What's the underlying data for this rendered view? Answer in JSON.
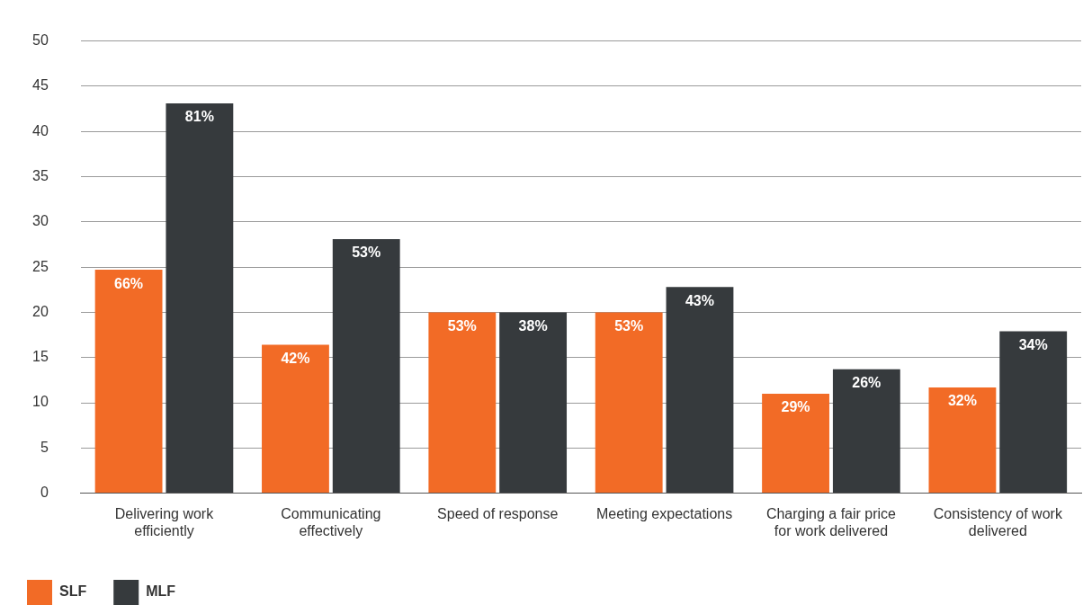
{
  "chart_data": {
    "type": "bar",
    "categories": [
      "Delivering work efficiently",
      "Communicating effectively",
      "Speed of response",
      "Meeting expectations",
      "Charging a fair price for work delivered",
      "Consistency of work delivered"
    ],
    "series": [
      {
        "name": "SLF",
        "color": "#f26b26",
        "values": [
          24.7,
          16.4,
          20,
          20,
          11,
          11.7
        ]
      },
      {
        "name": "MLF",
        "color": "#363a3d",
        "values": [
          43.1,
          28.1,
          20,
          22.8,
          13.7,
          17.9
        ]
      }
    ],
    "annotations": [
      {
        "text": "66%",
        "x": "Delivering work efficiently",
        "y": 24.7
      },
      {
        "text": "81%",
        "x": "Delivering work efficiently",
        "y": 43.1
      },
      {
        "text": "42%",
        "x": "Communicating effectively",
        "y": 16.4
      },
      {
        "text": "53%",
        "x": "Communicating effectively",
        "y": 28.1
      },
      {
        "text": "53%",
        "x": "Speed of response",
        "y": 20
      },
      {
        "text": "38%",
        "x": "Speed of response",
        "y": 20
      },
      {
        "text": "53%",
        "x": "Meeting expectations",
        "y": 20
      },
      {
        "text": "43%",
        "x": "Meeting expectations",
        "y": 22.8
      },
      {
        "text": "29%",
        "x": "Charging a fair price for work delivered",
        "y": 11
      },
      {
        "text": "26%",
        "x": "Charging a fair price for work delivered",
        "y": 13.7
      },
      {
        "text": "32%",
        "x": "Consistency of work delivered",
        "y": 11.7
      },
      {
        "text": "34%",
        "x": "Consistency of work delivered",
        "y": 17.9
      }
    ],
    "ylim": [
      0,
      50
    ],
    "yticks": [
      0,
      5,
      10,
      15,
      20,
      25,
      30,
      35,
      40,
      45,
      50
    ],
    "grid": "y",
    "legend": "bottom left"
  }
}
